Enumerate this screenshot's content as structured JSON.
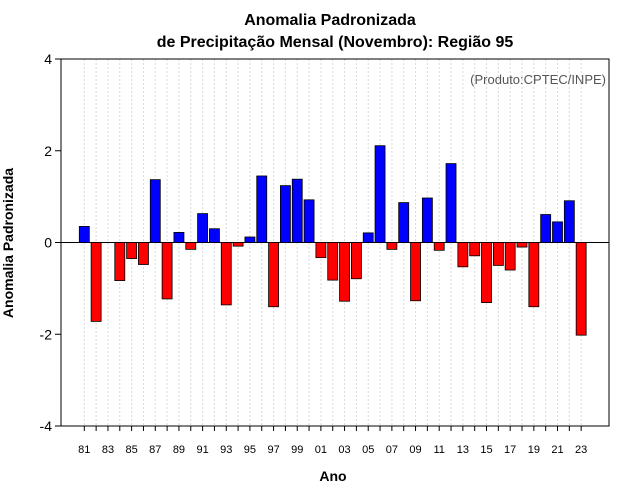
{
  "chart_data": {
    "type": "bar",
    "title_line1": "Anomalia Padronizada",
    "title_line2": "de Precipitação Mensal (Novembro): Região 95",
    "credit": "(Produto:CPTEC/INPE)",
    "xlabel": "Ano",
    "ylabel": "Anomalia Padronizada",
    "ylim": [
      -4,
      4
    ],
    "yticks": [
      -4,
      -2,
      0,
      2,
      4
    ],
    "xtick_labels": [
      "81",
      "83",
      "85",
      "87",
      "89",
      "91",
      "93",
      "95",
      "97",
      "99",
      "01",
      "03",
      "05",
      "07",
      "09",
      "11",
      "13",
      "15",
      "17",
      "19",
      "21",
      "23"
    ],
    "categories": [
      "1981",
      "1982",
      "1983",
      "1984",
      "1985",
      "1986",
      "1987",
      "1988",
      "1989",
      "1990",
      "1991",
      "1992",
      "1993",
      "1994",
      "1995",
      "1996",
      "1997",
      "1998",
      "1999",
      "2000",
      "2001",
      "2002",
      "2003",
      "2004",
      "2005",
      "2006",
      "2007",
      "2008",
      "2009",
      "2010",
      "2011",
      "2012",
      "2013",
      "2014",
      "2015",
      "2016",
      "2017",
      "2018",
      "2019",
      "2020",
      "2021",
      "2022",
      "2023"
    ],
    "values": [
      0.35,
      -1.72,
      0.0,
      -0.83,
      -0.35,
      -0.48,
      1.37,
      -1.23,
      0.22,
      -0.15,
      0.63,
      0.3,
      -1.36,
      -0.08,
      0.12,
      1.45,
      -1.4,
      1.24,
      1.38,
      0.93,
      -0.33,
      -0.82,
      -1.28,
      -0.79,
      0.21,
      2.11,
      -0.15,
      0.87,
      -1.27,
      0.97,
      -0.17,
      1.72,
      -0.53,
      -0.29,
      -1.31,
      -0.5,
      -0.6,
      -0.1,
      -1.4,
      0.61,
      0.45,
      0.91,
      -2.02
    ],
    "colors": {
      "positive": "#0000ff",
      "negative": "#ff0000",
      "grid": "#d9d9d9",
      "zero_line": "#000000"
    }
  }
}
